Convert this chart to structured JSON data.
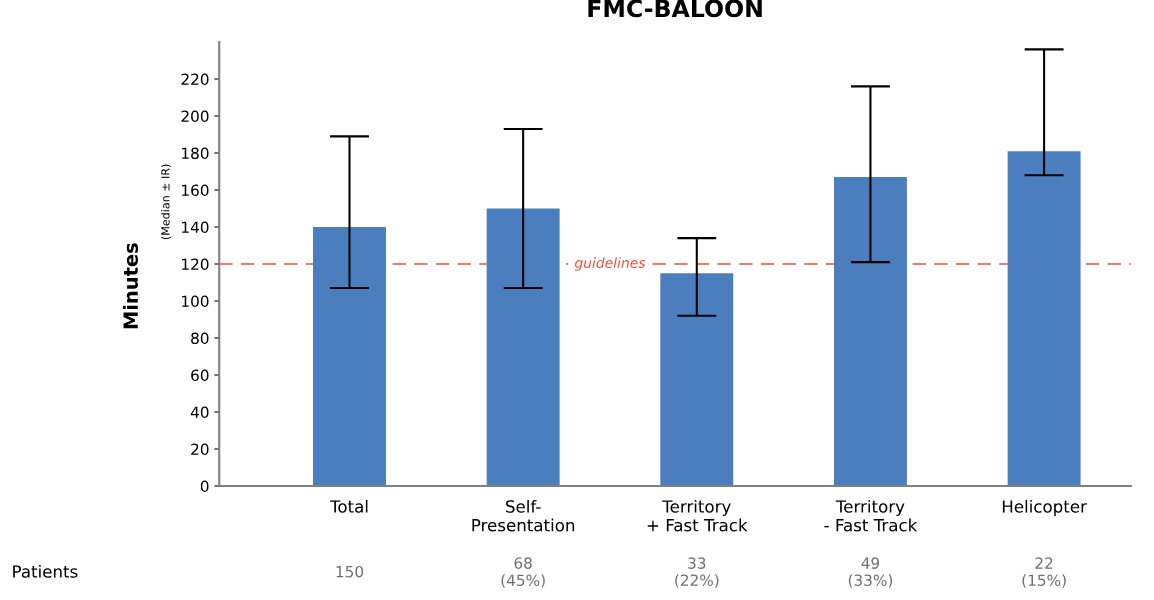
{
  "chart_data": {
    "type": "bar",
    "title": "FMC-BALOON",
    "ylabel": "Minutes",
    "categories": [
      "Total",
      "Self-\nPresentation",
      "Territory\n+ Fast Track",
      "Territory\n- Fast Track",
      "Helicopter"
    ],
    "values": [
      140,
      150,
      115,
      167,
      181
    ],
    "errors": [
      [
        107,
        189
      ],
      [
        107,
        193
      ],
      [
        92,
        134
      ],
      [
        121,
        216
      ],
      [
        168,
        236
      ]
    ],
    "color": "#4a7ebf",
    "ylim": [
      0,
      240
    ],
    "yticks": [
      0,
      20,
      40,
      60,
      80,
      100,
      120,
      140,
      160,
      180,
      200,
      220
    ],
    "ref_lines": [
      {
        "axis": "y",
        "value": 120,
        "label": "guidelines",
        "color": "#f04e3a",
        "line_style": "dashed"
      }
    ],
    "annotations": [
      "(Median ± IR)",
      "Patients",
      "150",
      "68\n(45%)",
      "33\n(22%)",
      "49\n(33%)",
      "22\n(15%)"
    ],
    "grid": false,
    "legend": false
  }
}
